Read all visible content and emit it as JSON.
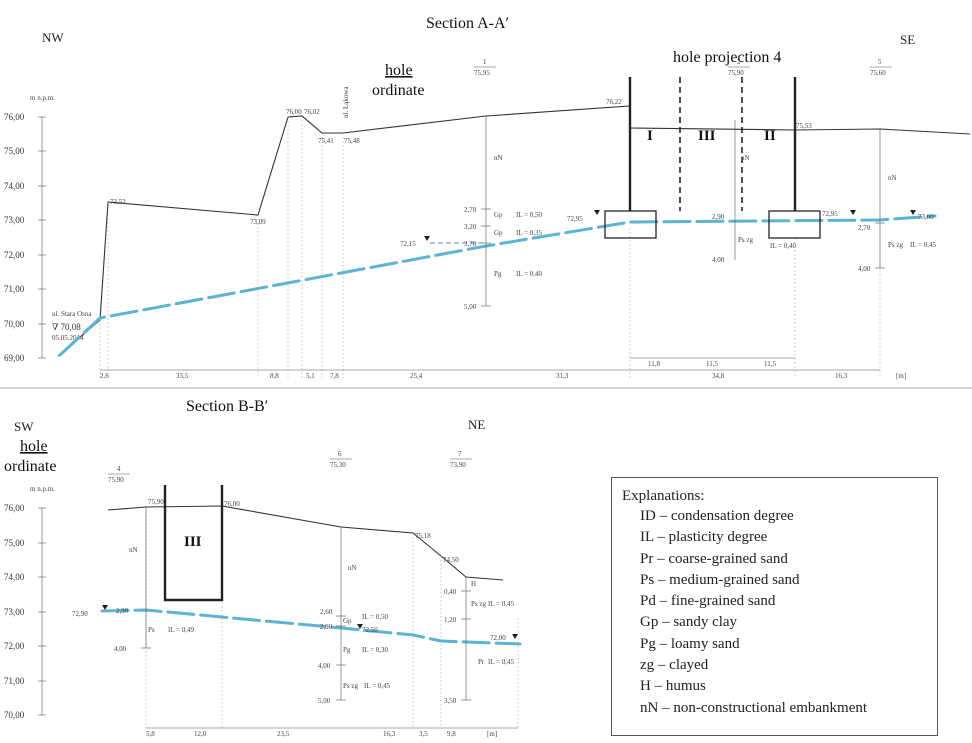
{
  "section_a": {
    "title": "Section A-A′",
    "left_dir": "NW",
    "right_dir": "SE",
    "hole_label": "hole",
    "ordinate_label": "ordinate",
    "projection_label": "hole projection 4",
    "unit_label": "m n.p.m.",
    "y_ticks": [
      "76,00",
      "75,00",
      "74,00",
      "73,00",
      "72,00",
      "71,00",
      "70,00",
      "69,00"
    ],
    "zones": [
      "I",
      "III",
      "II"
    ],
    "boreholes": [
      {
        "number": "1",
        "ordinate": "75,95"
      },
      {
        "number": "2",
        "ordinate": "75,90"
      },
      {
        "number": "5",
        "ordinate": "75,60"
      }
    ],
    "ground_labels": [
      "73,52",
      "73,09",
      "76,00",
      "76,02",
      "75,41",
      "75,48",
      "76,22",
      "75,53"
    ],
    "street_label": "ul. Łąkowa",
    "water_point_label": "ul. Stara Osna",
    "water_point_value": "∇ 70,08",
    "water_point_date": "05.05.2014",
    "water_levels": [
      "72,15",
      "72,95",
      "72,95",
      "73,00"
    ],
    "strata_labels": [
      "nN",
      "Gp",
      "Gp",
      "Pg",
      "nN",
      "Ps zg",
      "Ps zg",
      "nN"
    ],
    "il_labels": [
      "IL = 0,50",
      "IL = 0,35",
      "IL = 0,40",
      "IL = 0,40",
      "IL = 0,45"
    ],
    "depth_labels": [
      "2,70",
      "3,20",
      "3,70",
      "5,00",
      "2,90",
      "4,00",
      "2,70",
      "4,00"
    ],
    "distances": [
      "2,6",
      "33,5",
      "8,8",
      "5,1",
      "7,8",
      "25,4",
      "31,3",
      "11,8",
      "11,5",
      "11,5",
      "16,3"
    ],
    "distance_total": "34,8",
    "distance_unit": "[m]"
  },
  "section_b": {
    "title": "Section B-B′",
    "left_dir": "SW",
    "right_dir": "NE",
    "hole_label": "hole",
    "ordinate_label": "ordinate",
    "unit_label": "m n.p.m.",
    "y_ticks": [
      "76,00",
      "75,00",
      "74,00",
      "73,00",
      "72,00",
      "71,00",
      "70,00"
    ],
    "zone": "III",
    "boreholes": [
      {
        "number": "4",
        "ordinate": "75,90"
      },
      {
        "number": "6",
        "ordinate": "75,30"
      },
      {
        "number": "7",
        "ordinate": "73,90"
      }
    ],
    "ground_labels": [
      "75,90",
      "76,00",
      "75,18",
      "74,50"
    ],
    "water_levels": [
      "72,90",
      "72,50",
      "72,00"
    ],
    "strata_labels": [
      "nN",
      "Ps",
      "nN",
      "Gp",
      "Pg",
      "Ps zg",
      "H",
      "Ps zg",
      "Pr"
    ],
    "il_labels": [
      "IL = 0,49",
      "IL = 0,50",
      "IL = 0,30",
      "IL = 0,45",
      "IL = 0,45",
      "IL = 0,45"
    ],
    "depth_labels": [
      "2,90",
      "4,00",
      "2,60",
      "2,90",
      "4,00",
      "5,00",
      "0,40",
      "1,20",
      "3,50"
    ],
    "distances": [
      "5,8",
      "12,0",
      "23,5",
      "16,3",
      "3,5",
      "9,8"
    ],
    "distance_unit": "[m]"
  },
  "legend": {
    "title": "Explanations:",
    "items": [
      "ID – condensation degree",
      "IL – plasticity degree",
      "Pr – coarse-grained sand",
      "Ps – medium-grained sand",
      "Pd – fine-grained sand",
      "Gp – sandy clay",
      "Pg – loamy sand",
      "zg – clayed",
      "H – humus",
      "nN – non-constructional embankment"
    ]
  },
  "colors": {
    "groundwater": "#5ab4d2",
    "lines": "#333333"
  }
}
